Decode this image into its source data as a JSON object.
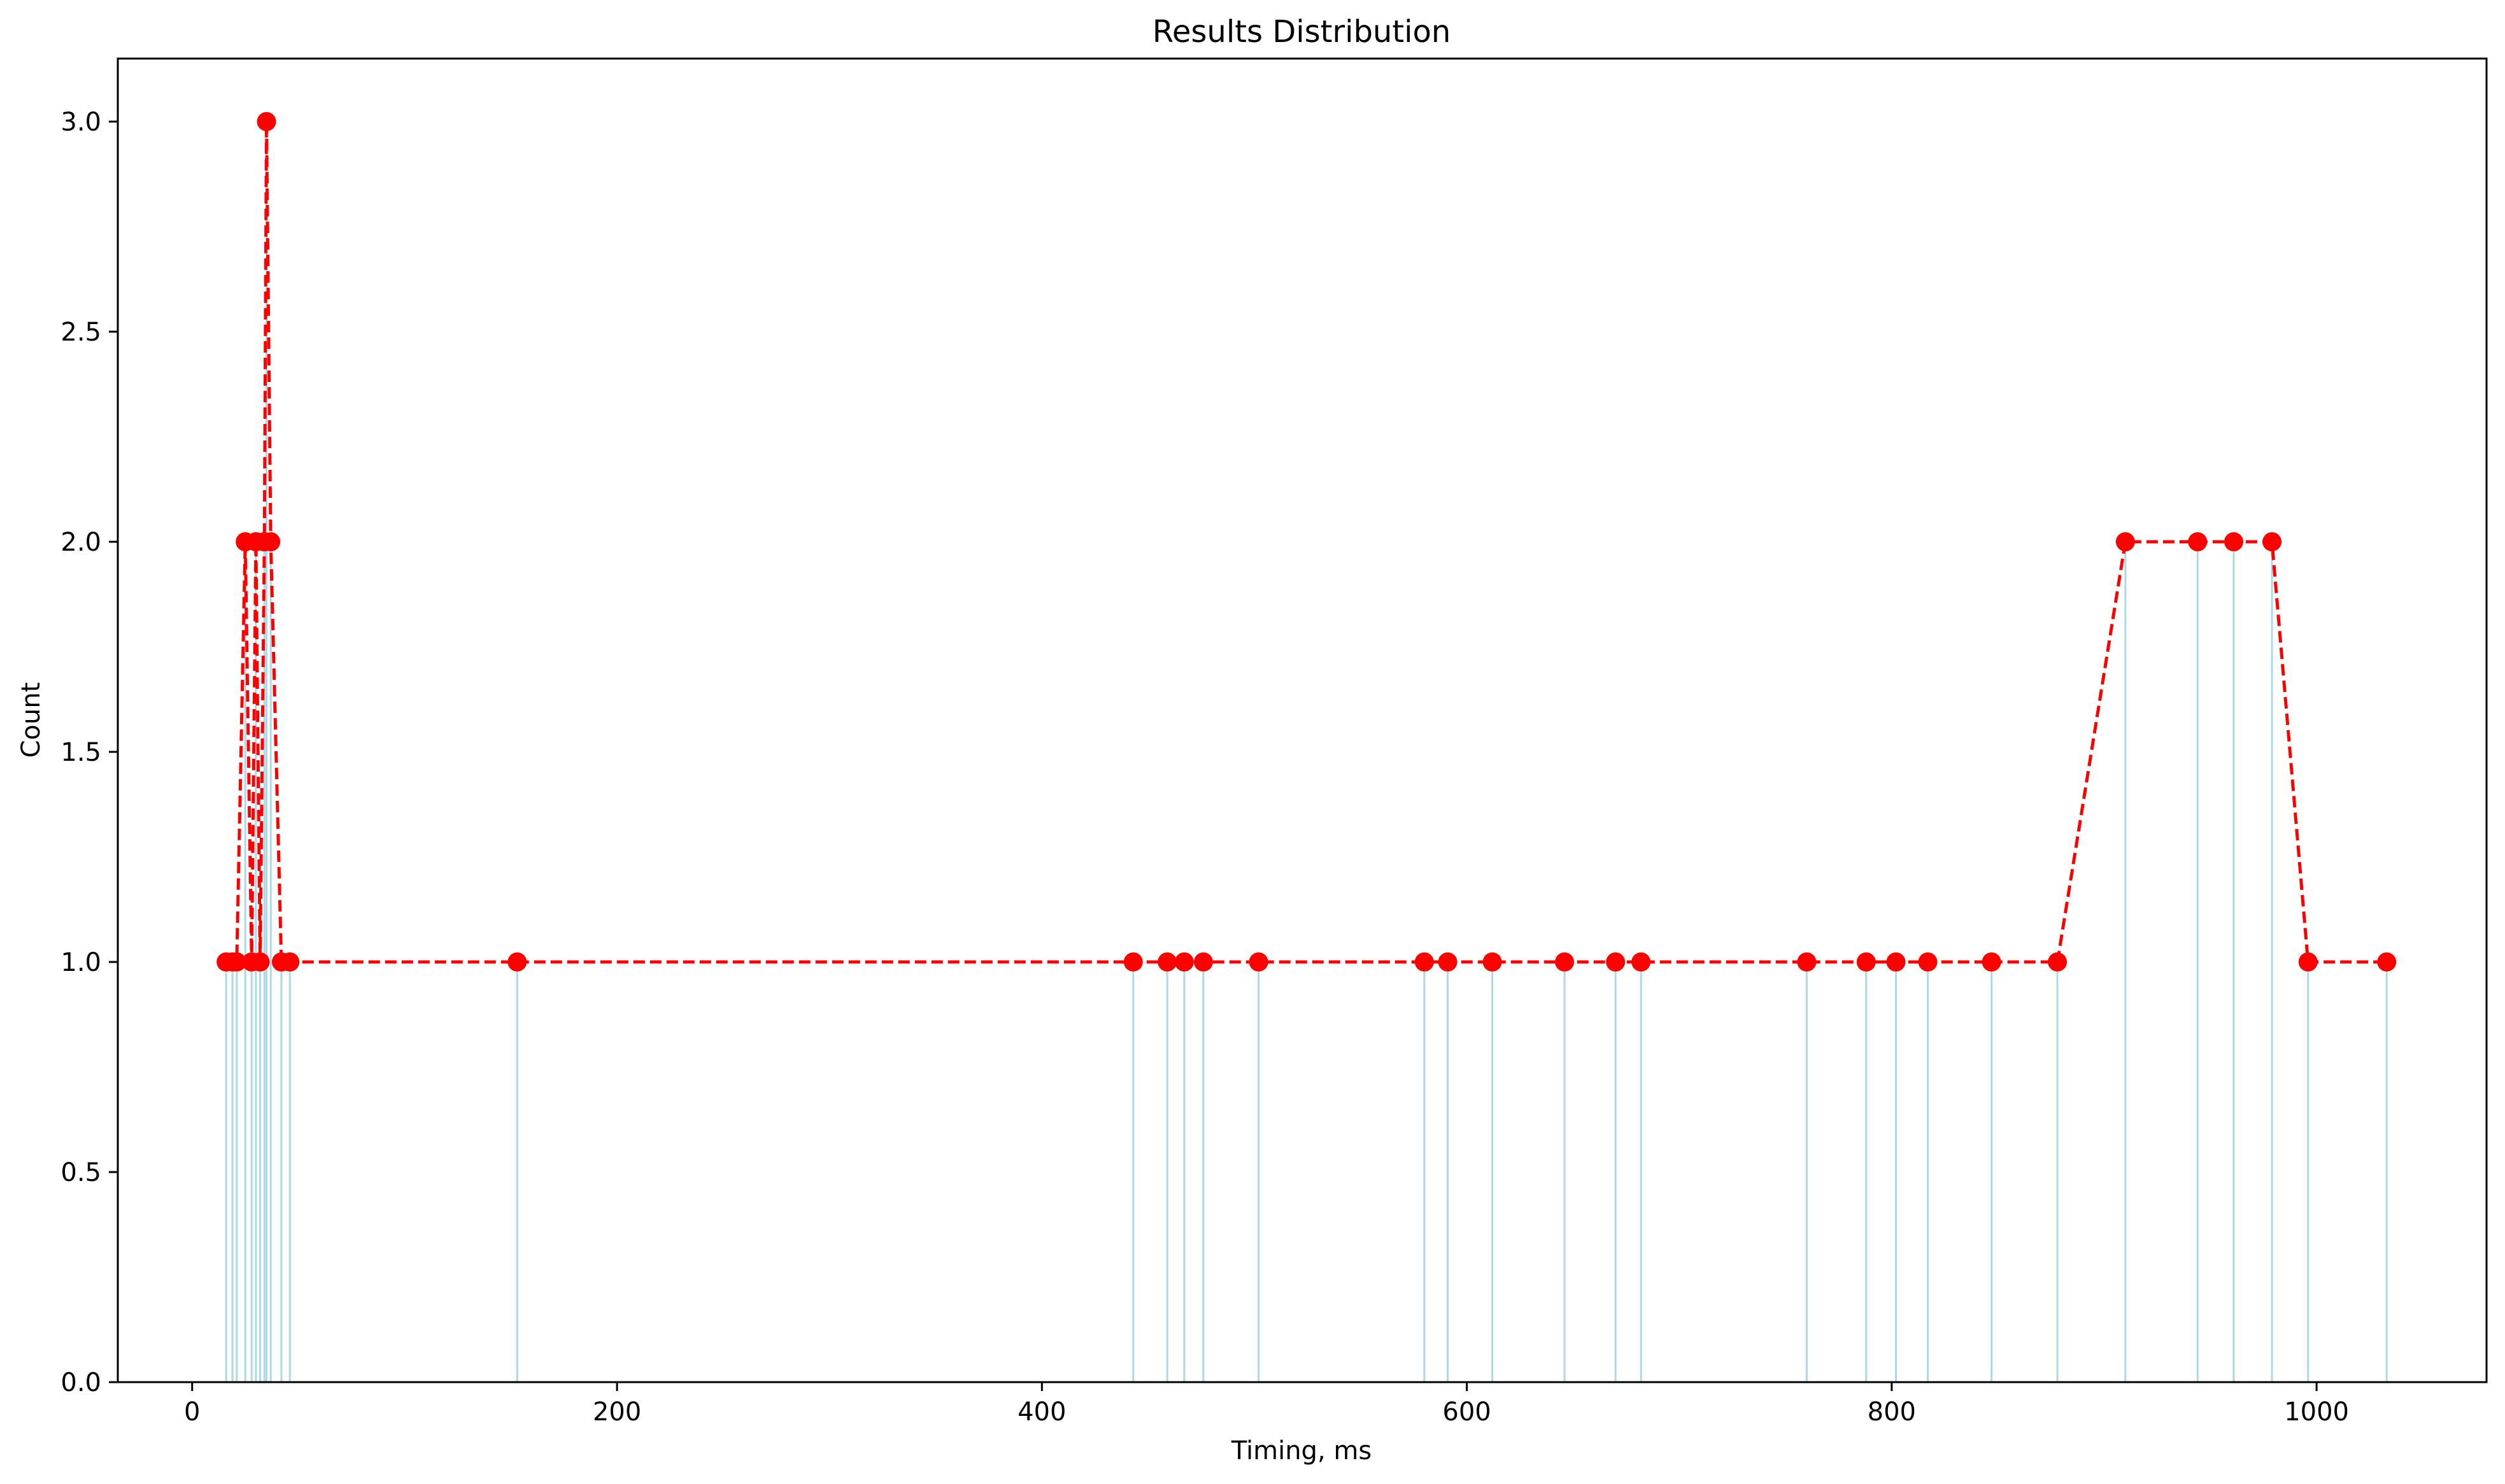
{
  "chart_data": {
    "type": "line",
    "title": "Results Distribution",
    "xlabel": "Timing, ms",
    "ylabel": "Count",
    "xlim": [
      -35,
      1080
    ],
    "ylim": [
      0,
      3.15
    ],
    "x_ticks": [
      0,
      200,
      400,
      600,
      800,
      1000
    ],
    "x_tick_labels": [
      "0",
      "200",
      "400",
      "600",
      "800",
      "1000"
    ],
    "y_ticks": [
      0,
      0.5,
      1.0,
      1.5,
      2.0,
      2.5,
      3.0
    ],
    "y_tick_labels": [
      "0.0",
      "0.5",
      "1.0",
      "1.5",
      "2.0",
      "2.5",
      "3.0"
    ],
    "grid": false,
    "series": [
      {
        "style": "vertical lines",
        "color": "#add8e6",
        "x": [
          16,
          19,
          21,
          25,
          28,
          30,
          32,
          34,
          35,
          37,
          42,
          46,
          153,
          443,
          459,
          467,
          476,
          502,
          580,
          591,
          612,
          646,
          670,
          682,
          760,
          788,
          802,
          817,
          847,
          878,
          910,
          944,
          961,
          979,
          996,
          1033
        ],
        "y": [
          1,
          1,
          1,
          2,
          1,
          2,
          1,
          2,
          3,
          2,
          1,
          1,
          1,
          1,
          1,
          1,
          1,
          1,
          1,
          1,
          1,
          1,
          1,
          1,
          1,
          1,
          1,
          1,
          1,
          1,
          2,
          2,
          2,
          2,
          1,
          1
        ]
      },
      {
        "style": "dashed line with circle markers",
        "color": "#ff0000",
        "x": [
          16,
          19,
          21,
          25,
          28,
          30,
          32,
          34,
          35,
          37,
          42,
          46,
          153,
          443,
          459,
          467,
          476,
          502,
          580,
          591,
          612,
          646,
          670,
          682,
          760,
          788,
          802,
          817,
          847,
          878,
          910,
          944,
          961,
          979,
          996,
          1033
        ],
        "y": [
          1,
          1,
          1,
          2,
          1,
          2,
          1,
          2,
          3,
          2,
          1,
          1,
          1,
          1,
          1,
          1,
          1,
          1,
          1,
          1,
          1,
          1,
          1,
          1,
          1,
          1,
          1,
          1,
          1,
          1,
          2,
          2,
          2,
          2,
          1,
          1
        ]
      }
    ]
  }
}
